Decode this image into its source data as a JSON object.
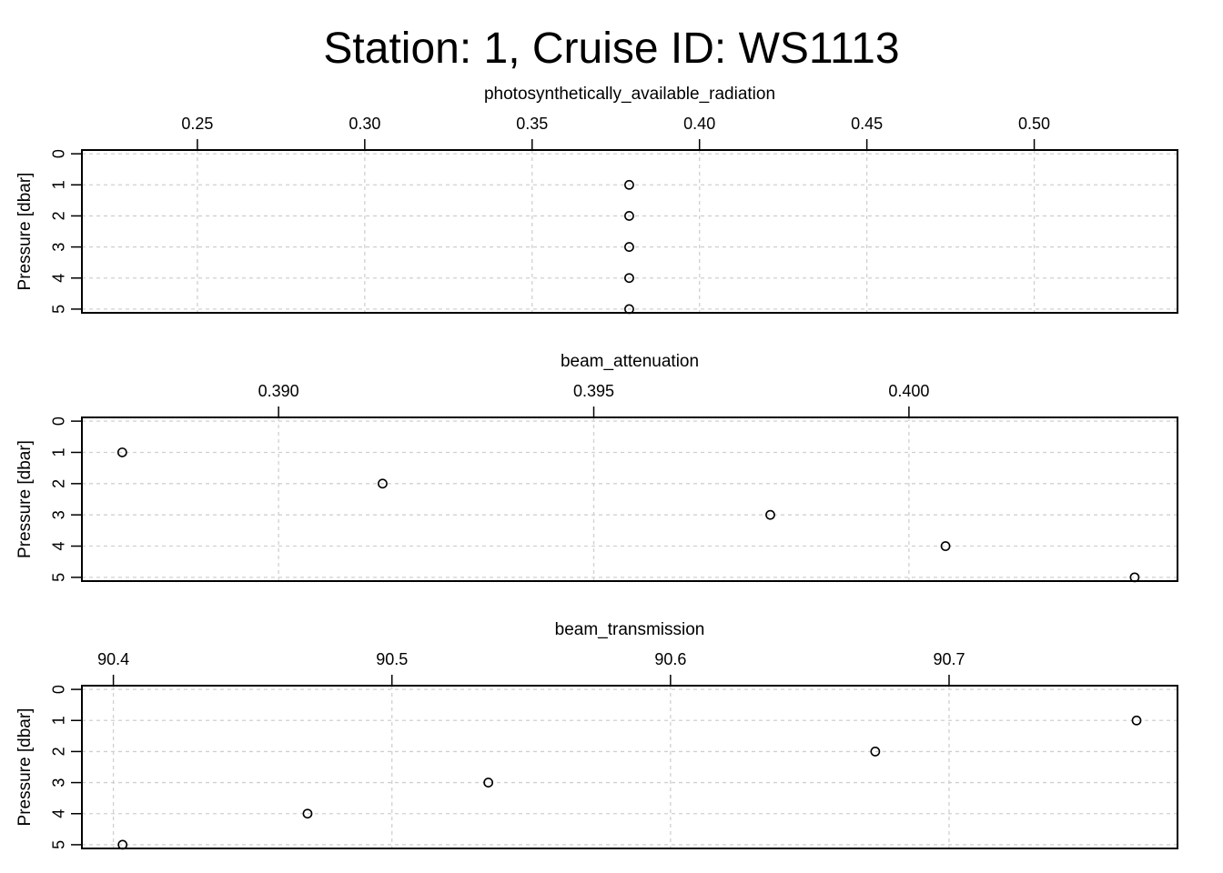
{
  "title": "Station: 1, Cruise ID: WS1113",
  "chart_data": [
    {
      "type": "scatter",
      "xlabel": "photosynthetically_available_radiation",
      "ylabel": "Pressure [dbar]",
      "xlim": [
        0.2155,
        0.5428
      ],
      "ylim": [
        0,
        5
      ],
      "y_reversed": true,
      "x_axis_position": "top",
      "grid": true,
      "xticks": [
        0.25,
        0.3,
        0.35,
        0.4,
        0.45,
        0.5
      ],
      "xtick_labels": [
        "0.25",
        "0.30",
        "0.35",
        "0.40",
        "0.45",
        "0.50"
      ],
      "yticks": [
        0,
        1,
        2,
        3,
        4,
        5
      ],
      "ytick_labels": [
        "0",
        "1",
        "2",
        "3",
        "4",
        "5"
      ],
      "points": [
        {
          "x": 0.379,
          "y": 1
        },
        {
          "x": 0.379,
          "y": 2
        },
        {
          "x": 0.379,
          "y": 3
        },
        {
          "x": 0.379,
          "y": 4
        },
        {
          "x": 0.379,
          "y": 5
        }
      ]
    },
    {
      "type": "scatter",
      "xlabel": "beam_attenuation",
      "ylabel": "Pressure [dbar]",
      "xlim": [
        0.38688,
        0.40426
      ],
      "ylim": [
        0,
        5
      ],
      "y_reversed": true,
      "x_axis_position": "top",
      "grid": true,
      "xticks": [
        0.39,
        0.395,
        0.4
      ],
      "xtick_labels": [
        "0.390",
        "0.395",
        "0.400"
      ],
      "yticks": [
        0,
        1,
        2,
        3,
        4,
        5
      ],
      "ytick_labels": [
        "0",
        "1",
        "2",
        "3",
        "4",
        "5"
      ],
      "points": [
        {
          "x": 0.38752,
          "y": 1
        },
        {
          "x": 0.39165,
          "y": 2
        },
        {
          "x": 0.3978,
          "y": 3
        },
        {
          "x": 0.40058,
          "y": 4
        },
        {
          "x": 0.40358,
          "y": 5
        }
      ]
    },
    {
      "type": "scatter",
      "xlabel": "beam_transmission",
      "ylabel": "Pressure [dbar]",
      "xlim": [
        90.3887,
        90.782
      ],
      "ylim": [
        0,
        5
      ],
      "y_reversed": true,
      "x_axis_position": "top",
      "grid": true,
      "xticks": [
        90.4,
        90.5,
        90.6,
        90.7
      ],
      "xtick_labels": [
        "90.4",
        "90.5",
        "90.6",
        "90.7"
      ],
      "yticks": [
        0,
        1,
        2,
        3,
        4,
        5
      ],
      "ytick_labels": [
        "0",
        "1",
        "2",
        "3",
        "4",
        "5"
      ],
      "points": [
        {
          "x": 90.7673,
          "y": 1
        },
        {
          "x": 90.6735,
          "y": 2
        },
        {
          "x": 90.5346,
          "y": 3
        },
        {
          "x": 90.4697,
          "y": 4
        },
        {
          "x": 90.4033,
          "y": 5
        }
      ]
    }
  ]
}
